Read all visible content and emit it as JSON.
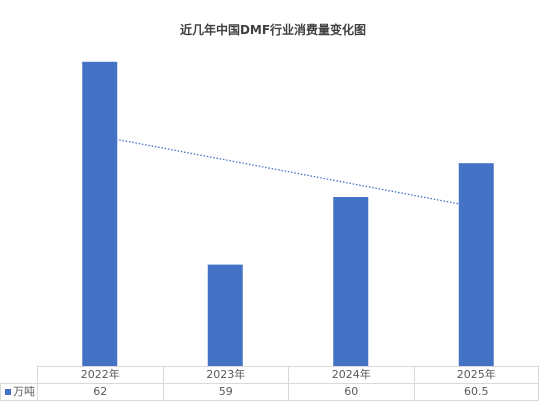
{
  "chart_data": {
    "type": "bar",
    "title": "近几年中国DMF行业消费量变化图",
    "categories": [
      "2022年",
      "2023年",
      "2024年",
      "2025年"
    ],
    "series": [
      {
        "name": "万吨",
        "values": [
          62,
          59,
          60,
          60.5
        ],
        "color": "#4472C4"
      }
    ],
    "ylim": [
      57.5,
      62.5
    ],
    "grid": false,
    "legend": "bottom",
    "data_table": true,
    "trendline": "linear"
  }
}
